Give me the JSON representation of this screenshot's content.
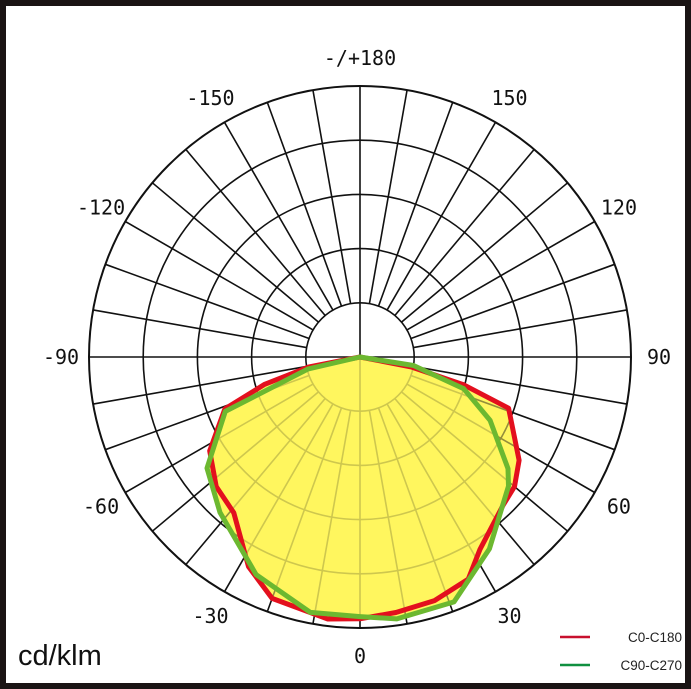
{
  "chart_data": {
    "type": "polar",
    "unit_label": "cd/klm",
    "ring_count": 5,
    "angle_step_deg": 10,
    "angle_labels": [
      {
        "angle": 180,
        "text": "-/+180"
      },
      {
        "angle": 150,
        "text": "150"
      },
      {
        "angle": -150,
        "text": "-150"
      },
      {
        "angle": 120,
        "text": "120"
      },
      {
        "angle": -120,
        "text": "-120"
      },
      {
        "angle": 90,
        "text": "90"
      },
      {
        "angle": -90,
        "text": "-90"
      },
      {
        "angle": 60,
        "text": "60"
      },
      {
        "angle": -60,
        "text": "-60"
      },
      {
        "angle": 30,
        "text": "30"
      },
      {
        "angle": -30,
        "text": "-30"
      },
      {
        "angle": 0,
        "text": "0"
      }
    ],
    "series": [
      {
        "name": "C0-C180",
        "color": "#e3101e",
        "points": [
          [
            -90,
            0
          ],
          [
            -79,
            0.96
          ],
          [
            -74,
            1.83
          ],
          [
            -69,
            2.67
          ],
          [
            -58,
            3.27
          ],
          [
            -48,
            3.57
          ],
          [
            -39,
            3.7
          ],
          [
            -28,
            4.38
          ],
          [
            -20,
            4.74
          ],
          [
            -7,
            4.87
          ],
          [
            0,
            4.83
          ],
          [
            8,
            4.76
          ],
          [
            17,
            4.7
          ],
          [
            26,
            4.56
          ],
          [
            32,
            4.18
          ],
          [
            44,
            3.8
          ],
          [
            50,
            3.72
          ],
          [
            57,
            3.5
          ],
          [
            71,
            2.9
          ],
          [
            75,
            1.98
          ],
          [
            79,
            0.96
          ],
          [
            90,
            0
          ]
        ]
      },
      {
        "name": "C90-C270",
        "color": "#6cb830",
        "points": [
          [
            -90,
            0
          ],
          [
            -77,
            0.98
          ],
          [
            -68,
            2.68
          ],
          [
            -54,
            3.49
          ],
          [
            -42,
            3.86
          ],
          [
            -25.5,
            4.45
          ],
          [
            -11,
            4.8
          ],
          [
            0,
            4.79
          ],
          [
            8,
            4.88
          ],
          [
            21,
            4.84
          ],
          [
            34,
            4.27
          ],
          [
            49,
            3.63
          ],
          [
            53,
            3.42
          ],
          [
            64,
            2.67
          ],
          [
            73,
            2.0
          ],
          [
            81,
            1.0
          ],
          [
            90,
            0
          ]
        ]
      }
    ],
    "fill_color": "#fff65e",
    "legend": [
      {
        "label": "C0-C180",
        "color": "#c8102e"
      },
      {
        "label": "C90-C270",
        "color": "#109040"
      }
    ],
    "legend_position": "bottom-right"
  }
}
